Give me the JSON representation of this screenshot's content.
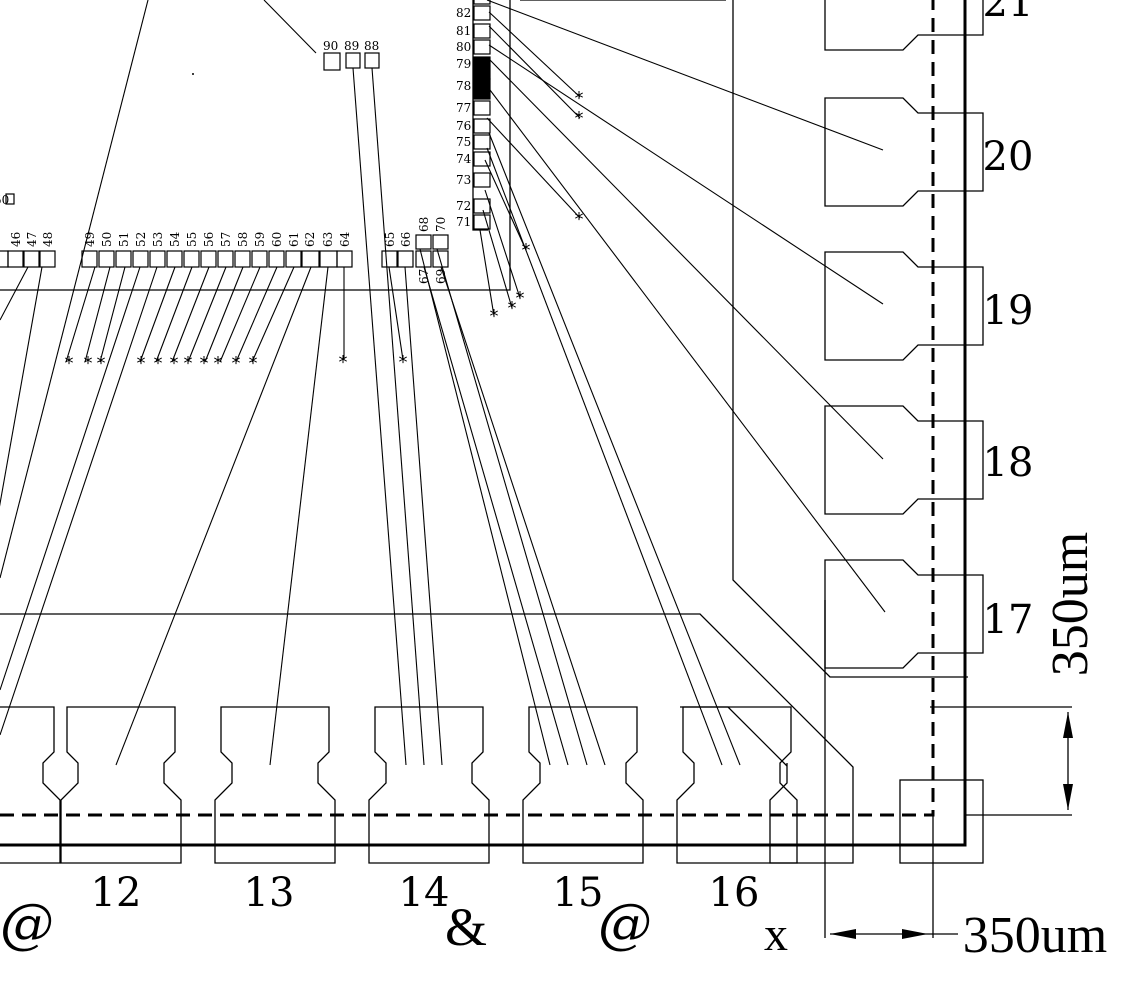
{
  "pad_labels": {
    "bottom": [
      "12",
      "13",
      "14",
      "15",
      "16"
    ],
    "right": [
      "21",
      "20",
      "19",
      "18",
      "17"
    ]
  },
  "bottom_symbols": [
    "@",
    "&",
    "@",
    "x"
  ],
  "dimensions": {
    "vertical": "350um",
    "horizontal": "350um"
  },
  "chip_pins": {
    "top": [
      "90",
      "89",
      "88"
    ],
    "right_column": [
      "82",
      "81",
      "80",
      "79",
      "78",
      "77",
      "76",
      "75",
      "74",
      "73",
      "72",
      "71"
    ],
    "row": [
      "47",
      "48",
      "49",
      "50",
      "51",
      "52",
      "53",
      "54",
      "55",
      "56",
      "57",
      "58",
      "59",
      "60",
      "61",
      "62",
      "63",
      "64",
      "65",
      "66",
      "67",
      "68",
      "69",
      "70"
    ],
    "partial": [
      "50",
      "46"
    ]
  },
  "filled_pins": [
    "79",
    "78"
  ],
  "marker_symbol": "*"
}
